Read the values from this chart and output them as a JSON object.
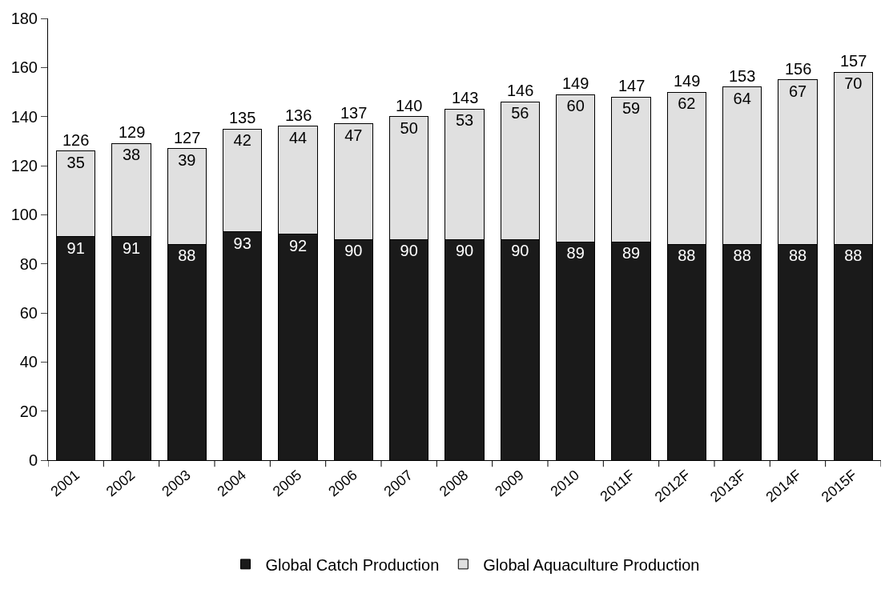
{
  "chart_data": {
    "type": "bar",
    "stacked": true,
    "data_labels": true,
    "categories": [
      "2001",
      "2002",
      "2003",
      "2004",
      "2005",
      "2006",
      "2007",
      "2008",
      "2009",
      "2010",
      "2011F",
      "2012F",
      "2013F",
      "2014F",
      "2015F"
    ],
    "series": [
      {
        "name": "Global Catch Production",
        "color": "#1a1a1a",
        "values": [
          91,
          91,
          88,
          93,
          92,
          90,
          90,
          90,
          90,
          89,
          89,
          88,
          88,
          88,
          88
        ]
      },
      {
        "name": "Global Aquaculture Production",
        "color": "#e0e0e0",
        "values": [
          35,
          38,
          39,
          42,
          44,
          47,
          50,
          53,
          56,
          60,
          59,
          62,
          64,
          67,
          70
        ]
      }
    ],
    "totals": [
      "126",
      "129",
      "127",
      "135",
      "136",
      "137",
      "140",
      "143",
      "146",
      "149",
      "147",
      "149",
      "153",
      "156",
      "157"
    ],
    "ylim": [
      0,
      180
    ],
    "yticks": [
      0,
      20,
      40,
      60,
      80,
      100,
      120,
      140,
      160,
      180
    ],
    "legend": "bottom"
  }
}
